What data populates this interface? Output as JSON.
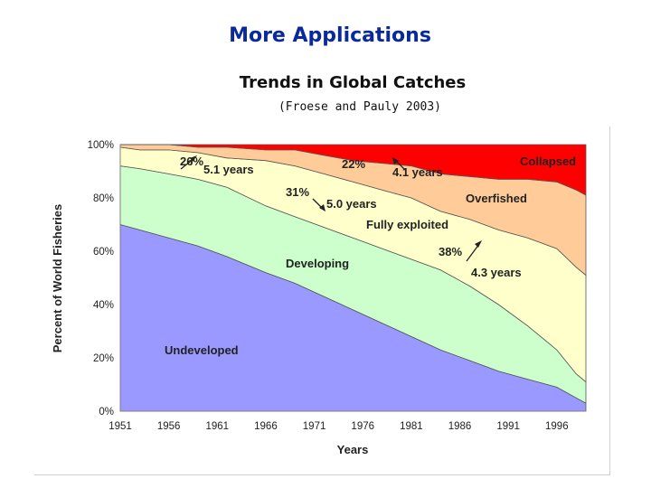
{
  "slide": {
    "title": "More Applications"
  },
  "chart_data": {
    "type": "area",
    "stacked": true,
    "percent": true,
    "title": "Trends in Global Catches",
    "subtitle": "(Froese and Pauly 2003)",
    "xlabel": "Years",
    "ylabel": "Percent of World Fisheries",
    "xlim": [
      1951,
      1999
    ],
    "ylim": [
      0,
      100
    ],
    "x_ticks": [
      "1951",
      "1956",
      "1961",
      "1966",
      "1971",
      "1976",
      "1981",
      "1986",
      "1991",
      "1996"
    ],
    "y_ticks": [
      "0%",
      "20%",
      "40%",
      "60%",
      "80%",
      "100%"
    ],
    "grid": false,
    "x": [
      1951,
      1953,
      1956,
      1959,
      1962,
      1966,
      1969,
      1972,
      1975,
      1978,
      1981,
      1984,
      1987,
      1990,
      1993,
      1996,
      1998,
      1999
    ],
    "series": [
      {
        "name": "Undeveloped",
        "color": "#9999ff",
        "values": [
          70,
          68,
          65,
          62,
          58,
          52,
          48,
          43,
          38,
          33,
          28,
          23,
          19,
          15,
          12,
          9,
          5,
          3
        ]
      },
      {
        "name": "Developing",
        "color": "#ccffcc",
        "values": [
          22,
          23,
          24,
          25,
          26,
          25,
          25,
          26,
          27,
          28,
          29,
          30,
          28,
          25,
          20,
          14,
          9,
          8
        ]
      },
      {
        "name": "Fully exploited",
        "color": "#ffffcc",
        "values": [
          7,
          7,
          9,
          10,
          11,
          17,
          19,
          20,
          21,
          22,
          23,
          22,
          25,
          28,
          33,
          38,
          40,
          40
        ]
      },
      {
        "name": "Overfished",
        "color": "#ffcc99",
        "values": [
          1,
          2,
          2,
          2,
          4,
          4,
          6,
          7,
          8,
          10,
          12,
          14,
          16,
          19,
          22,
          25,
          29,
          30
        ]
      },
      {
        "name": "Collapsed",
        "color": "#ff0000",
        "values": [
          0,
          0,
          0,
          1,
          1,
          2,
          2,
          4,
          6,
          7,
          8,
          11,
          12,
          13,
          13,
          14,
          17,
          19
        ]
      }
    ],
    "annotations": [
      {
        "pct": "26%",
        "years": "5.1 years"
      },
      {
        "pct": "22%",
        "years": "4.1 years"
      },
      {
        "pct": "31%",
        "years": "5.0 years"
      },
      {
        "pct": "38%",
        "years": "4.3 years"
      }
    ]
  }
}
